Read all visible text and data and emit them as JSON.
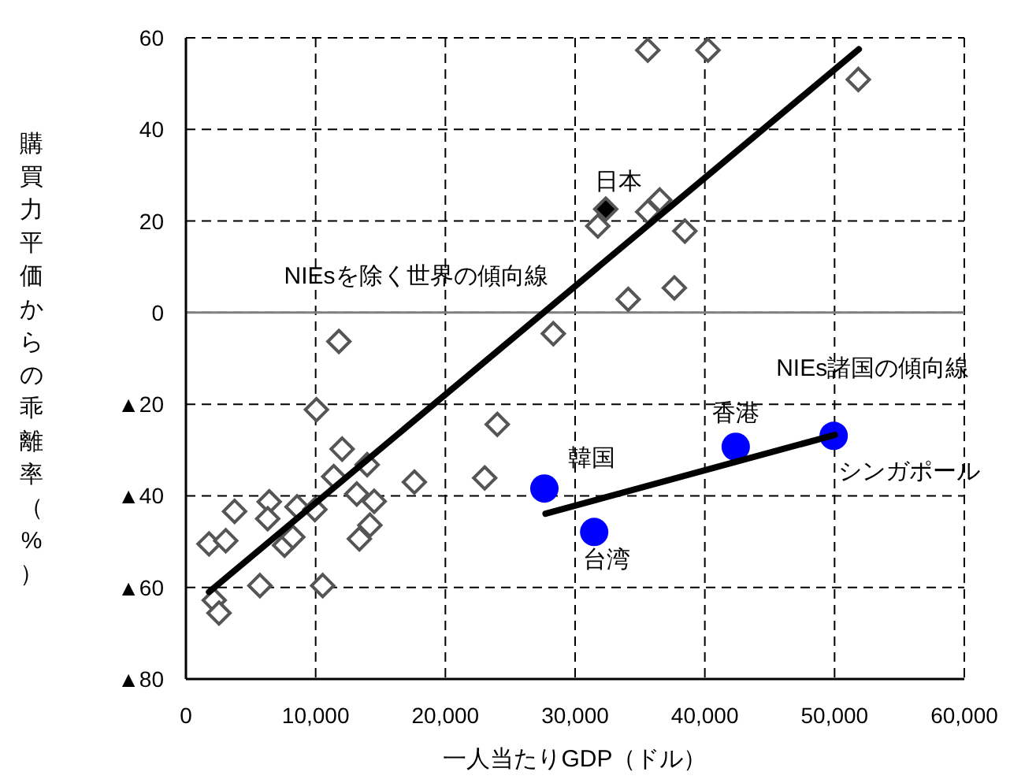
{
  "chart_data": {
    "type": "scatter",
    "xlabel": "一人当たりGDP（ドル）",
    "ylabel": "購買力平価からの乖離率（%）",
    "xlim": [
      0,
      60000
    ],
    "ylim": [
      -80,
      60
    ],
    "xticks": [
      0,
      {
        "value": 10000,
        "label": "10,000"
      },
      {
        "value": 20000,
        "label": "20,000"
      },
      {
        "value": 30000,
        "label": "30,000"
      },
      {
        "value": 40000,
        "label": "40,000"
      },
      {
        "value": 50000,
        "label": "50,000"
      },
      {
        "value": 60000,
        "label": "60,000"
      }
    ],
    "yticks": [
      {
        "value": -80,
        "label": "▲80"
      },
      {
        "value": -60,
        "label": "▲60"
      },
      {
        "value": -40,
        "label": "▲40"
      },
      {
        "value": -20,
        "label": "▲20"
      },
      0,
      20,
      40,
      60
    ],
    "grid": true,
    "ref_lines": [
      {
        "axis": "y",
        "value": 0,
        "color": "#808080",
        "line_style": "solid"
      }
    ],
    "series": [
      {
        "type": "scatter",
        "marker": "diamond",
        "color": "#555555",
        "x": [
          1780,
          3070,
          3750,
          6420,
          6300,
          8570,
          9940,
          7600,
          8240,
          11790,
          10060,
          12040,
          11390,
          13970,
          13170,
          14510,
          14180,
          13370,
          17610,
          5700,
          10540,
          2180,
          2550,
          24000,
          23030,
          28320,
          35600,
          40240,
          51830,
          31750,
          35600,
          36520,
          38460,
          34090,
          37650
        ],
        "values": [
          -50.5,
          -49.8,
          -43.4,
          -41.3,
          -45,
          -42.4,
          -43,
          -50.8,
          -49,
          -6.3,
          -21.2,
          -29.8,
          -35.8,
          -33.2,
          -39.6,
          -41.2,
          -46.4,
          -49.4,
          -37,
          -59.6,
          -59.6,
          -62.8,
          -65.6,
          -24.4,
          -36.1,
          -4.6,
          57.3,
          57.3,
          50.9,
          18.9,
          22,
          24.6,
          17.8,
          2.9,
          5.4
        ]
      },
      {
        "name": "日本",
        "marker": "diamond",
        "color": "#000000",
        "x": [
          32360
        ],
        "values": [
          22.6
        ]
      },
      {
        "name": "韓国",
        "marker": "circle",
        "color": "#0000ff",
        "x": [
          27630
        ],
        "values": [
          -38.4
        ]
      },
      {
        "name": "台湾",
        "marker": "circle",
        "color": "#0000ff",
        "x": [
          31470
        ],
        "values": [
          -47.9
        ]
      },
      {
        "name": "香港",
        "marker": "circle",
        "color": "#0000ff",
        "x": [
          42380
        ],
        "values": [
          -29.3
        ]
      },
      {
        "name": "シンガポール",
        "marker": "circle",
        "color": "#0000ff",
        "x": [
          49930
        ],
        "values": [
          -26.9
        ]
      },
      {
        "name": "NIEsを除く世界の傾向線",
        "type": "line",
        "marker": "none",
        "color": "#000000",
        "x": [
          1780,
          51870
        ],
        "values": [
          -61,
          57.5
        ]
      },
      {
        "name": "NIEs諸国の傾向線",
        "type": "line",
        "marker": "none",
        "color": "#000000",
        "x": [
          27720,
          50020
        ],
        "values": [
          -43.9,
          -26.7
        ]
      }
    ]
  }
}
